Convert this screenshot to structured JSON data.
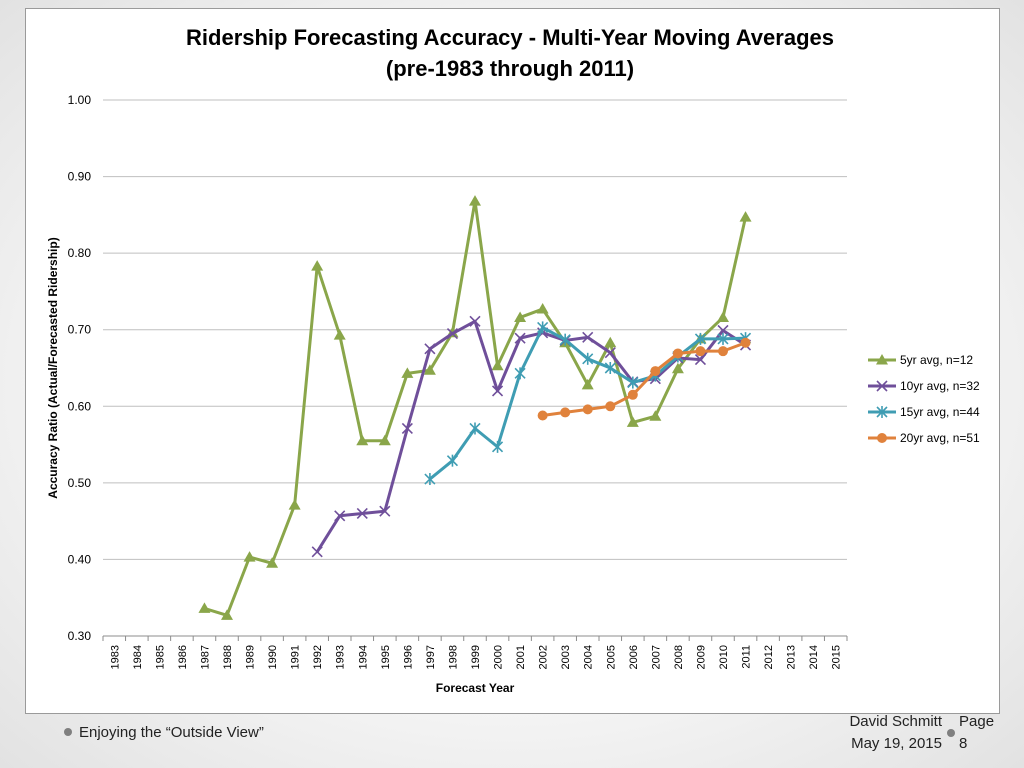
{
  "chart_data": {
    "type": "line",
    "title": "Ridership Forecasting Accuracy - Multi-Year Moving Averages",
    "subtitle": "(pre-1983 through 2011)",
    "xlabel": "Forecast Year",
    "ylabel": "Accuracy Ratio (Actual/Forecasted Ridership)",
    "x": [
      1983,
      1984,
      1985,
      1986,
      1987,
      1988,
      1989,
      1990,
      1991,
      1992,
      1993,
      1994,
      1995,
      1996,
      1997,
      1998,
      1999,
      2000,
      2001,
      2002,
      2003,
      2004,
      2005,
      2006,
      2007,
      2008,
      2009,
      2010,
      2011,
      2012,
      2013,
      2014,
      2015
    ],
    "ylim": [
      0.3,
      1.0
    ],
    "yticks": [
      "0.30",
      "0.40",
      "0.50",
      "0.60",
      "0.70",
      "0.80",
      "0.90",
      "1.00"
    ],
    "grid": true,
    "legend": "right",
    "series": [
      {
        "name": "5yr avg, n=12",
        "color": "#8aa64a",
        "marker": "triangle",
        "points": [
          [
            1987,
            0.336
          ],
          [
            1988,
            0.327
          ],
          [
            1989,
            0.403
          ],
          [
            1990,
            0.395
          ],
          [
            1991,
            0.471
          ],
          [
            1992,
            0.783
          ],
          [
            1993,
            0.693
          ],
          [
            1994,
            0.555
          ],
          [
            1995,
            0.555
          ],
          [
            1996,
            0.643
          ],
          [
            1997,
            0.647
          ],
          [
            1998,
            0.696
          ],
          [
            1999,
            0.868
          ],
          [
            2000,
            0.653
          ],
          [
            2001,
            0.716
          ],
          [
            2002,
            0.727
          ],
          [
            2003,
            0.683
          ],
          [
            2004,
            0.628
          ],
          [
            2005,
            0.683
          ],
          [
            2006,
            0.579
          ],
          [
            2007,
            0.587
          ],
          [
            2008,
            0.649
          ],
          [
            2009,
            0.688
          ],
          [
            2010,
            0.716
          ],
          [
            2011,
            0.847
          ]
        ]
      },
      {
        "name": "10yr avg, n=32",
        "color": "#6f4f9a",
        "marker": "x",
        "points": [
          [
            1992,
            0.41
          ],
          [
            1993,
            0.457
          ],
          [
            1994,
            0.46
          ],
          [
            1995,
            0.463
          ],
          [
            1996,
            0.571
          ],
          [
            1997,
            0.675
          ],
          [
            1998,
            0.695
          ],
          [
            1999,
            0.711
          ],
          [
            2000,
            0.62
          ],
          [
            2001,
            0.689
          ],
          [
            2002,
            0.696
          ],
          [
            2003,
            0.686
          ],
          [
            2004,
            0.69
          ],
          [
            2005,
            0.67
          ],
          [
            2006,
            0.632
          ],
          [
            2007,
            0.636
          ],
          [
            2008,
            0.663
          ],
          [
            2009,
            0.661
          ],
          [
            2010,
            0.699
          ],
          [
            2011,
            0.68
          ]
        ]
      },
      {
        "name": "15yr avg, n=44",
        "color": "#3f9db3",
        "marker": "star",
        "points": [
          [
            1997,
            0.505
          ],
          [
            1998,
            0.529
          ],
          [
            1999,
            0.571
          ],
          [
            2000,
            0.547
          ],
          [
            2001,
            0.643
          ],
          [
            2002,
            0.703
          ],
          [
            2003,
            0.687
          ],
          [
            2004,
            0.662
          ],
          [
            2005,
            0.65
          ],
          [
            2006,
            0.631
          ],
          [
            2007,
            0.64
          ],
          [
            2008,
            0.665
          ],
          [
            2009,
            0.688
          ],
          [
            2010,
            0.688
          ],
          [
            2011,
            0.689
          ]
        ]
      },
      {
        "name": "20yr avg, n=51",
        "color": "#e0823c",
        "marker": "circle",
        "points": [
          [
            2002,
            0.588
          ],
          [
            2003,
            0.592
          ],
          [
            2004,
            0.596
          ],
          [
            2005,
            0.6
          ],
          [
            2006,
            0.615
          ],
          [
            2007,
            0.646
          ],
          [
            2008,
            0.669
          ],
          [
            2009,
            0.672
          ],
          [
            2010,
            0.672
          ],
          [
            2011,
            0.683
          ]
        ]
      }
    ]
  },
  "footer": {
    "left_text": "Enjoying the “Outside View”",
    "author": "David Schmitt",
    "date": "May 19, 2015",
    "page_label": "Page",
    "page_number": "8"
  }
}
